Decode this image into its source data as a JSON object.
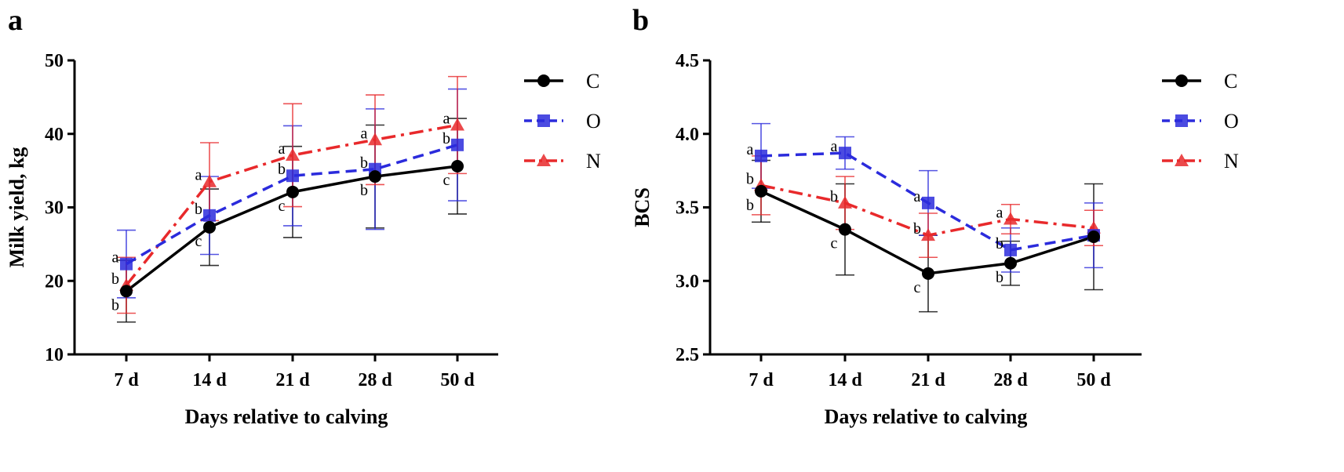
{
  "chart_data": [
    {
      "panel_letter": "a",
      "type": "line",
      "categories": [
        "7 d",
        "14 d",
        "21 d",
        "28 d",
        "50 d"
      ],
      "xlabel": "Days relative to calving",
      "ylabel": "Milk yield, kg",
      "ylim": [
        10,
        50
      ],
      "yticks": [
        "10",
        "20",
        "30",
        "40",
        "50"
      ],
      "series": [
        {
          "name": "C",
          "color": "#000000",
          "marker": "circle",
          "line": "solid",
          "values": [
            18.6,
            27.3,
            32.1,
            34.2,
            35.6
          ],
          "errors": [
            4.2,
            5.2,
            6.2,
            7.0,
            6.5
          ],
          "letters": [
            "b",
            "c",
            "c",
            "b",
            "c"
          ]
        },
        {
          "name": "O",
          "color": "#2b2bdc",
          "marker": "square",
          "line": "dash",
          "values": [
            22.3,
            28.9,
            34.3,
            35.2,
            38.5
          ],
          "errors": [
            4.6,
            5.3,
            6.8,
            8.2,
            7.6
          ],
          "letters": [
            "a",
            "b",
            "b",
            "b",
            "b"
          ]
        },
        {
          "name": "N",
          "color": "#e8292b",
          "marker": "triangle",
          "line": "dashdot",
          "values": [
            19.4,
            33.5,
            37.1,
            39.2,
            41.2
          ],
          "errors": [
            3.8,
            5.3,
            7.0,
            6.1,
            6.6
          ],
          "letters": [
            "b",
            "a",
            "a",
            "a",
            "a"
          ]
        }
      ]
    },
    {
      "panel_letter": "b",
      "type": "line",
      "categories": [
        "7 d",
        "14 d",
        "21 d",
        "28 d",
        "50 d"
      ],
      "xlabel": "Days relative to calving",
      "ylabel": "BCS",
      "ylim": [
        2.5,
        4.5
      ],
      "yticks": [
        "2.5",
        "3.0",
        "3.5",
        "4.0",
        "4.5"
      ],
      "series": [
        {
          "name": "C",
          "color": "#000000",
          "marker": "circle",
          "line": "solid",
          "values": [
            3.61,
            3.35,
            3.05,
            3.12,
            3.3
          ],
          "errors": [
            0.21,
            0.31,
            0.26,
            0.15,
            0.36
          ],
          "letters": [
            "b",
            "c",
            "c",
            "b",
            ""
          ]
        },
        {
          "name": "O",
          "color": "#2b2bdc",
          "marker": "square",
          "line": "dash",
          "values": [
            3.85,
            3.87,
            3.53,
            3.21,
            3.31
          ],
          "errors": [
            0.22,
            0.11,
            0.22,
            0.15,
            0.22
          ],
          "letters": [
            "a",
            "a",
            "a",
            "b",
            ""
          ]
        },
        {
          "name": "N",
          "color": "#e8292b",
          "marker": "triangle",
          "line": "dashdot",
          "values": [
            3.65,
            3.53,
            3.31,
            3.42,
            3.36
          ],
          "errors": [
            0.2,
            0.18,
            0.15,
            0.1,
            0.12
          ],
          "letters": [
            "b",
            "b",
            "b",
            "a",
            ""
          ]
        }
      ]
    }
  ]
}
